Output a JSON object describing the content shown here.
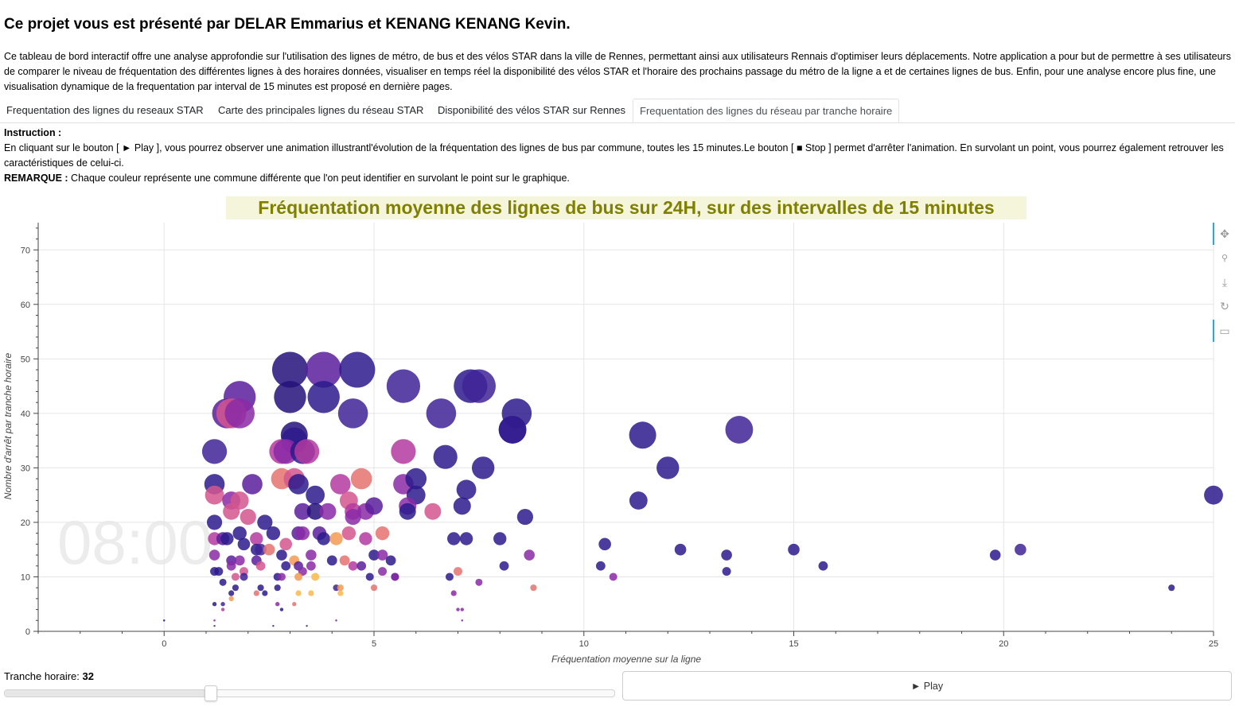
{
  "header": {
    "title": "Ce projet vous est présenté par DELAR Emmarius et KENANG KENANG Kevin.",
    "intro": "Ce tableau de bord interactif offre une analyse approfondie sur l'utilisation des lignes de métro, de bus et des vélos STAR dans la ville de Rennes, permettant ainsi aux utilisateurs Rennais d'optimiser leurs déplacements. Notre application a pour but de permettre à ses utilisateurs de comparer le niveau de fréquentation des différentes lignes à des horaires données, visualiser en temps réel la disponibilité des vélos STAR et l'horaire des prochains passage du métro de la ligne a et de certaines lignes de bus. Enfin, pour une analyse encore plus fine, une visualisation dynamique de la frequentation par interval de 15 minutes est proposé en dernière pages."
  },
  "tabs": [
    {
      "label": "Frequentation des lignes du reseaux STAR",
      "active": false
    },
    {
      "label": "Carte des principales lignes du réseau STAR",
      "active": false
    },
    {
      "label": "Disponibilité des vélos STAR sur Rennes",
      "active": false
    },
    {
      "label": "Frequentation des lignes du réseau par tranche horaire",
      "active": true
    }
  ],
  "instructions": {
    "heading": "Instruction :",
    "text": "En cliquant sur le bouton [ ► Play ], vous pourrez observer une animation illustrantl'évolution de la fréquentation des lignes de bus par commune, toutes les 15 minutes.Le bouton [ ■ Stop ] permet d'arrêter l'animation. En survolant un point, vous pourrez également retrouver les caractéristiques de celui-ci.",
    "remark_label": "REMARQUE :",
    "remark_text": " Chaque couleur représente une commune différente que l'on peut identifier en survolant le point sur le graphique."
  },
  "toolbar": {
    "icons": [
      "pan-icon",
      "wheel-zoom-icon",
      "save-icon",
      "reset-icon",
      "hover-icon"
    ]
  },
  "controls": {
    "slider_label": "Tranche horaire: ",
    "slider_value": "32",
    "slider_min": 0,
    "slider_max": 95,
    "play_label": "► Play"
  },
  "colors": {
    "title_text": "#808000",
    "title_bg": "#f5f5dc",
    "palette": [
      "#2b1a8c",
      "#3f2398",
      "#24127a",
      "#5a1e9c",
      "#8a2aa6",
      "#b43aa0",
      "#d4568e",
      "#e57270",
      "#f39a52",
      "#fab84a"
    ]
  },
  "chart_data": {
    "type": "scatter",
    "title": "Fréquentation moyenne des lignes de bus sur 24H, sur des intervalles de 15 minutes",
    "xlabel": "Fréquentation moyenne sur la ligne",
    "ylabel": "Nombre d'arrêt par tranche horaire",
    "time_label": "08:00",
    "xlim": [
      -3,
      25
    ],
    "ylim": [
      0,
      75
    ],
    "xticks": [
      0,
      5,
      10,
      15,
      20,
      25
    ],
    "yticks": [
      0,
      10,
      20,
      30,
      40,
      50,
      60,
      70
    ],
    "grid": true,
    "size_encodes": "y",
    "points": [
      {
        "x": 3.0,
        "y": 48,
        "c": 2
      },
      {
        "x": 3.8,
        "y": 48,
        "c": 3
      },
      {
        "x": 4.6,
        "y": 48,
        "c": 0
      },
      {
        "x": 1.8,
        "y": 43,
        "c": 3
      },
      {
        "x": 3.0,
        "y": 43,
        "c": 2
      },
      {
        "x": 3.8,
        "y": 43,
        "c": 0
      },
      {
        "x": 5.7,
        "y": 45,
        "c": 1
      },
      {
        "x": 7.3,
        "y": 45,
        "c": 0
      },
      {
        "x": 7.5,
        "y": 45,
        "c": 1
      },
      {
        "x": 1.5,
        "y": 40,
        "c": 3
      },
      {
        "x": 1.6,
        "y": 40,
        "c": 6
      },
      {
        "x": 1.8,
        "y": 40,
        "c": 4
      },
      {
        "x": 4.5,
        "y": 40,
        "c": 1
      },
      {
        "x": 6.6,
        "y": 40,
        "c": 1
      },
      {
        "x": 8.4,
        "y": 40,
        "c": 0
      },
      {
        "x": 8.3,
        "y": 37,
        "c": 3
      },
      {
        "x": 8.3,
        "y": 37,
        "c": 0
      },
      {
        "x": 13.7,
        "y": 37,
        "c": 1
      },
      {
        "x": 11.4,
        "y": 36,
        "c": 0
      },
      {
        "x": 3.1,
        "y": 36,
        "c": 2
      },
      {
        "x": 3.1,
        "y": 35,
        "c": 0
      },
      {
        "x": 1.2,
        "y": 33,
        "c": 1
      },
      {
        "x": 2.8,
        "y": 33,
        "c": 5
      },
      {
        "x": 2.9,
        "y": 33,
        "c": 4
      },
      {
        "x": 3.3,
        "y": 33,
        "c": 0
      },
      {
        "x": 3.4,
        "y": 33,
        "c": 5
      },
      {
        "x": 5.7,
        "y": 33,
        "c": 5
      },
      {
        "x": 6.7,
        "y": 32,
        "c": 0
      },
      {
        "x": 7.6,
        "y": 30,
        "c": 0
      },
      {
        "x": 12.0,
        "y": 30,
        "c": 0
      },
      {
        "x": 2.8,
        "y": 28,
        "c": 7
      },
      {
        "x": 3.1,
        "y": 28,
        "c": 6
      },
      {
        "x": 4.7,
        "y": 28,
        "c": 7
      },
      {
        "x": 1.2,
        "y": 27,
        "c": 0
      },
      {
        "x": 2.1,
        "y": 27,
        "c": 3
      },
      {
        "x": 3.2,
        "y": 27,
        "c": 0
      },
      {
        "x": 4.2,
        "y": 27,
        "c": 5
      },
      {
        "x": 5.7,
        "y": 27,
        "c": 4
      },
      {
        "x": 6.0,
        "y": 28,
        "c": 0
      },
      {
        "x": 7.2,
        "y": 26,
        "c": 0
      },
      {
        "x": 11.3,
        "y": 24,
        "c": 0
      },
      {
        "x": 25.0,
        "y": 25,
        "c": 0
      },
      {
        "x": 1.2,
        "y": 25,
        "c": 6
      },
      {
        "x": 1.6,
        "y": 24,
        "c": 4
      },
      {
        "x": 1.8,
        "y": 24,
        "c": 6
      },
      {
        "x": 3.6,
        "y": 25,
        "c": 0
      },
      {
        "x": 4.4,
        "y": 24,
        "c": 6
      },
      {
        "x": 6.0,
        "y": 25,
        "c": 0
      },
      {
        "x": 1.6,
        "y": 22,
        "c": 6
      },
      {
        "x": 3.3,
        "y": 22,
        "c": 3
      },
      {
        "x": 3.6,
        "y": 22,
        "c": 2
      },
      {
        "x": 3.9,
        "y": 22,
        "c": 4
      },
      {
        "x": 4.5,
        "y": 22,
        "c": 5
      },
      {
        "x": 4.8,
        "y": 22,
        "c": 4
      },
      {
        "x": 5.0,
        "y": 23,
        "c": 3
      },
      {
        "x": 5.8,
        "y": 23,
        "c": 4
      },
      {
        "x": 5.8,
        "y": 22,
        "c": 0
      },
      {
        "x": 6.4,
        "y": 22,
        "c": 6
      },
      {
        "x": 7.1,
        "y": 23,
        "c": 0
      },
      {
        "x": 1.2,
        "y": 20,
        "c": 0
      },
      {
        "x": 2.0,
        "y": 21,
        "c": 6
      },
      {
        "x": 2.4,
        "y": 20,
        "c": 0
      },
      {
        "x": 4.5,
        "y": 21,
        "c": 4
      },
      {
        "x": 8.6,
        "y": 21,
        "c": 0
      },
      {
        "x": 1.2,
        "y": 17,
        "c": 5
      },
      {
        "x": 1.4,
        "y": 17,
        "c": 3
      },
      {
        "x": 1.5,
        "y": 17,
        "c": 0
      },
      {
        "x": 1.8,
        "y": 18,
        "c": 0
      },
      {
        "x": 2.2,
        "y": 17,
        "c": 5
      },
      {
        "x": 2.6,
        "y": 18,
        "c": 0
      },
      {
        "x": 3.2,
        "y": 18,
        "c": 3
      },
      {
        "x": 3.3,
        "y": 18,
        "c": 4
      },
      {
        "x": 3.7,
        "y": 18,
        "c": 3
      },
      {
        "x": 3.8,
        "y": 17,
        "c": 0
      },
      {
        "x": 4.1,
        "y": 17,
        "c": 8
      },
      {
        "x": 4.4,
        "y": 18,
        "c": 6
      },
      {
        "x": 4.8,
        "y": 17,
        "c": 5
      },
      {
        "x": 5.2,
        "y": 18,
        "c": 7
      },
      {
        "x": 6.9,
        "y": 17,
        "c": 0
      },
      {
        "x": 7.2,
        "y": 17,
        "c": 0
      },
      {
        "x": 8.0,
        "y": 17,
        "c": 0
      },
      {
        "x": 1.9,
        "y": 16,
        "c": 0
      },
      {
        "x": 2.9,
        "y": 16,
        "c": 6
      },
      {
        "x": 10.5,
        "y": 16,
        "c": 0
      },
      {
        "x": 12.3,
        "y": 15,
        "c": 0
      },
      {
        "x": 15.0,
        "y": 15,
        "c": 0
      },
      {
        "x": 20.4,
        "y": 15,
        "c": 1
      },
      {
        "x": 2.2,
        "y": 15,
        "c": 0
      },
      {
        "x": 2.3,
        "y": 15,
        "c": 1
      },
      {
        "x": 2.5,
        "y": 15,
        "c": 7
      },
      {
        "x": 1.2,
        "y": 14,
        "c": 4
      },
      {
        "x": 2.8,
        "y": 14,
        "c": 0
      },
      {
        "x": 3.5,
        "y": 14,
        "c": 4
      },
      {
        "x": 5.0,
        "y": 14,
        "c": 0
      },
      {
        "x": 5.2,
        "y": 14,
        "c": 4
      },
      {
        "x": 5.4,
        "y": 13,
        "c": 0
      },
      {
        "x": 8.7,
        "y": 14,
        "c": 4
      },
      {
        "x": 13.4,
        "y": 14,
        "c": 0
      },
      {
        "x": 19.8,
        "y": 14,
        "c": 0
      },
      {
        "x": 1.6,
        "y": 13,
        "c": 3
      },
      {
        "x": 1.8,
        "y": 13,
        "c": 4
      },
      {
        "x": 2.2,
        "y": 13,
        "c": 3
      },
      {
        "x": 2.3,
        "y": 12,
        "c": 6
      },
      {
        "x": 3.1,
        "y": 13,
        "c": 8
      },
      {
        "x": 4.0,
        "y": 13,
        "c": 0
      },
      {
        "x": 4.3,
        "y": 13,
        "c": 7
      },
      {
        "x": 4.5,
        "y": 12,
        "c": 5
      },
      {
        "x": 4.7,
        "y": 12,
        "c": 3
      },
      {
        "x": 1.6,
        "y": 12,
        "c": 4
      },
      {
        "x": 2.9,
        "y": 12,
        "c": 0
      },
      {
        "x": 3.2,
        "y": 12,
        "c": 3
      },
      {
        "x": 3.5,
        "y": 12,
        "c": 4
      },
      {
        "x": 8.1,
        "y": 12,
        "c": 0
      },
      {
        "x": 10.4,
        "y": 12,
        "c": 0
      },
      {
        "x": 15.7,
        "y": 12,
        "c": 0
      },
      {
        "x": 1.2,
        "y": 11,
        "c": 0
      },
      {
        "x": 1.3,
        "y": 11,
        "c": 0
      },
      {
        "x": 1.9,
        "y": 11,
        "c": 6
      },
      {
        "x": 3.3,
        "y": 11,
        "c": 4
      },
      {
        "x": 5.2,
        "y": 11,
        "c": 4
      },
      {
        "x": 7.0,
        "y": 11,
        "c": 7
      },
      {
        "x": 13.4,
        "y": 11,
        "c": 0
      },
      {
        "x": 1.7,
        "y": 10,
        "c": 6
      },
      {
        "x": 1.9,
        "y": 10,
        "c": 1
      },
      {
        "x": 2.7,
        "y": 10,
        "c": 0
      },
      {
        "x": 2.8,
        "y": 10,
        "c": 4
      },
      {
        "x": 3.2,
        "y": 10,
        "c": 8
      },
      {
        "x": 3.6,
        "y": 10,
        "c": 9
      },
      {
        "x": 4.9,
        "y": 10,
        "c": 0
      },
      {
        "x": 5.5,
        "y": 10,
        "c": 0
      },
      {
        "x": 5.5,
        "y": 10,
        "c": 4
      },
      {
        "x": 6.8,
        "y": 10,
        "c": 0
      },
      {
        "x": 10.7,
        "y": 10,
        "c": 4
      },
      {
        "x": 1.4,
        "y": 9,
        "c": 0
      },
      {
        "x": 7.5,
        "y": 9,
        "c": 4
      },
      {
        "x": 1.7,
        "y": 8,
        "c": 0
      },
      {
        "x": 2.3,
        "y": 8,
        "c": 0
      },
      {
        "x": 2.7,
        "y": 8,
        "c": 0
      },
      {
        "x": 4.1,
        "y": 8,
        "c": 1
      },
      {
        "x": 4.2,
        "y": 8,
        "c": 8
      },
      {
        "x": 5.0,
        "y": 8,
        "c": 7
      },
      {
        "x": 8.8,
        "y": 8,
        "c": 7
      },
      {
        "x": 24.0,
        "y": 8,
        "c": 0
      },
      {
        "x": 1.6,
        "y": 7,
        "c": 0
      },
      {
        "x": 2.2,
        "y": 7,
        "c": 7
      },
      {
        "x": 2.4,
        "y": 7,
        "c": 0
      },
      {
        "x": 3.2,
        "y": 7,
        "c": 9
      },
      {
        "x": 3.5,
        "y": 7,
        "c": 9
      },
      {
        "x": 4.2,
        "y": 7,
        "c": 9
      },
      {
        "x": 6.9,
        "y": 7,
        "c": 4
      },
      {
        "x": 1.6,
        "y": 6,
        "c": 8
      },
      {
        "x": 1.2,
        "y": 5,
        "c": 0
      },
      {
        "x": 1.4,
        "y": 5,
        "c": 1
      },
      {
        "x": 2.7,
        "y": 5,
        "c": 4
      },
      {
        "x": 3.1,
        "y": 5,
        "c": 7
      },
      {
        "x": 1.4,
        "y": 4,
        "c": 5
      },
      {
        "x": 2.8,
        "y": 4,
        "c": 0
      },
      {
        "x": 7.0,
        "y": 4,
        "c": 4
      },
      {
        "x": 7.1,
        "y": 4,
        "c": 4
      },
      {
        "x": 0.0,
        "y": 2,
        "c": 0
      },
      {
        "x": 1.2,
        "y": 2,
        "c": 4
      },
      {
        "x": 4.1,
        "y": 2,
        "c": 4
      },
      {
        "x": 7.1,
        "y": 2,
        "c": 4
      },
      {
        "x": 1.2,
        "y": 1,
        "c": 0
      },
      {
        "x": 2.6,
        "y": 1,
        "c": 0
      },
      {
        "x": 3.4,
        "y": 1,
        "c": 0
      }
    ]
  }
}
